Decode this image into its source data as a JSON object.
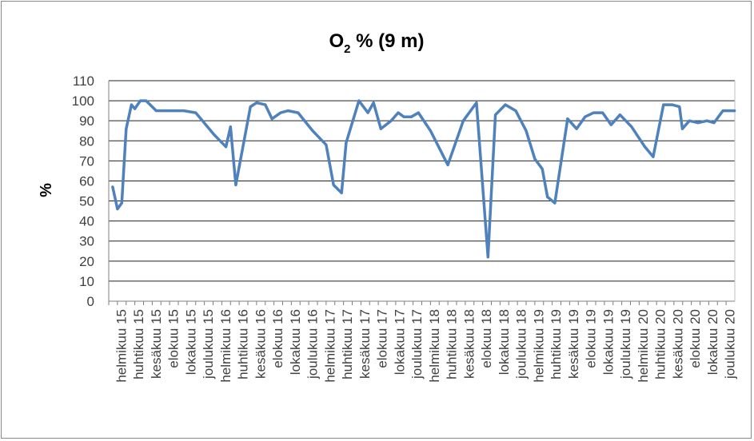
{
  "chart_data": {
    "type": "line",
    "title": {
      "prefix": "O",
      "subscript": "2",
      "rest": " % (9 m)"
    },
    "xlabel": "",
    "ylabel": "%",
    "ylim": [
      0,
      110
    ],
    "yticks": [
      0,
      10,
      20,
      30,
      40,
      50,
      60,
      70,
      80,
      90,
      100,
      110
    ],
    "grid": true,
    "legend": "none",
    "x_tick_labels": [
      "helmikuu 15",
      "huhtikuu 15",
      "kesäkuu 15",
      "elokuu 15",
      "lokakuu 15",
      "joulukuu 15",
      "helmikuu 16",
      "huhtikuu 16",
      "kesäkuu 16",
      "elokuu 16",
      "lokakuu 16",
      "joulukuu 16",
      "helmikuu 17",
      "huhtikuu 17",
      "kesäkuu 17",
      "elokuu 17",
      "lokakuu 17",
      "joulukuu 17",
      "helmikuu 18",
      "huhtikuu 18",
      "kesäkuu 18",
      "elokuu 18",
      "lokakuu 18",
      "joulukuu 18",
      "helmikuu 19",
      "huhtikuu 19",
      "kesäkuu 19",
      "elokuu 19",
      "lokakuu 19",
      "joulukuu 19",
      "helmikuu 20",
      "huhtikuu 20",
      "kesäkuu 20",
      "elokuu 20",
      "lokakuu 20",
      "joulukuu 20"
    ],
    "x_start": "2015-01",
    "x_end": "2020-12",
    "series": [
      {
        "color": "#4f81bd",
        "points": [
          [
            "2015-01-15",
            57
          ],
          [
            "2015-02-01",
            46
          ],
          [
            "2015-02-15",
            49
          ],
          [
            "2015-03-01",
            86
          ],
          [
            "2015-03-20",
            98
          ],
          [
            "2015-04-01",
            96
          ],
          [
            "2015-04-20",
            100
          ],
          [
            "2015-05-10",
            100
          ],
          [
            "2015-06-15",
            95
          ],
          [
            "2015-08-10",
            95
          ],
          [
            "2015-09-20",
            95
          ],
          [
            "2015-11-01",
            94
          ],
          [
            "2016-01-05",
            83
          ],
          [
            "2016-02-15",
            77
          ],
          [
            "2016-03-01",
            87
          ],
          [
            "2016-03-20",
            58
          ],
          [
            "2016-05-10",
            97
          ],
          [
            "2016-06-01",
            99
          ],
          [
            "2016-07-01",
            98
          ],
          [
            "2016-07-25",
            91
          ],
          [
            "2016-08-25",
            94
          ],
          [
            "2016-09-20",
            95
          ],
          [
            "2016-10-25",
            94
          ],
          [
            "2016-12-15",
            85
          ],
          [
            "2017-02-01",
            78
          ],
          [
            "2017-02-25",
            58
          ],
          [
            "2017-03-25",
            54
          ],
          [
            "2017-04-10",
            79
          ],
          [
            "2017-05-25",
            100
          ],
          [
            "2017-06-25",
            94
          ],
          [
            "2017-07-15",
            99
          ],
          [
            "2017-08-10",
            86
          ],
          [
            "2017-09-15",
            90
          ],
          [
            "2017-10-10",
            94
          ],
          [
            "2017-10-30",
            92
          ],
          [
            "2017-11-25",
            92
          ],
          [
            "2017-12-20",
            94
          ],
          [
            "2018-02-01",
            85
          ],
          [
            "2018-04-01",
            68
          ],
          [
            "2018-05-25",
            90
          ],
          [
            "2018-07-10",
            99
          ],
          [
            "2018-08-20",
            22
          ],
          [
            "2018-09-15",
            93
          ],
          [
            "2018-10-20",
            98
          ],
          [
            "2018-11-25",
            95
          ],
          [
            "2019-01-01",
            85
          ],
          [
            "2019-02-01",
            71
          ],
          [
            "2019-02-25",
            66
          ],
          [
            "2019-03-15",
            52
          ],
          [
            "2019-04-10",
            49
          ],
          [
            "2019-05-25",
            91
          ],
          [
            "2019-06-25",
            86
          ],
          [
            "2019-07-25",
            92
          ],
          [
            "2019-08-25",
            94
          ],
          [
            "2019-09-25",
            94
          ],
          [
            "2019-10-25",
            88
          ],
          [
            "2019-11-25",
            93
          ],
          [
            "2020-01-05",
            87
          ],
          [
            "2020-02-20",
            77
          ],
          [
            "2020-03-20",
            72
          ],
          [
            "2020-04-25",
            98
          ],
          [
            "2020-05-25",
            98
          ],
          [
            "2020-06-20",
            97
          ],
          [
            "2020-06-30",
            86
          ],
          [
            "2020-07-25",
            90
          ],
          [
            "2020-08-25",
            89
          ],
          [
            "2020-09-25",
            90
          ],
          [
            "2020-10-20",
            89
          ],
          [
            "2020-11-20",
            95
          ],
          [
            "2020-12-31",
            95
          ]
        ]
      }
    ]
  }
}
